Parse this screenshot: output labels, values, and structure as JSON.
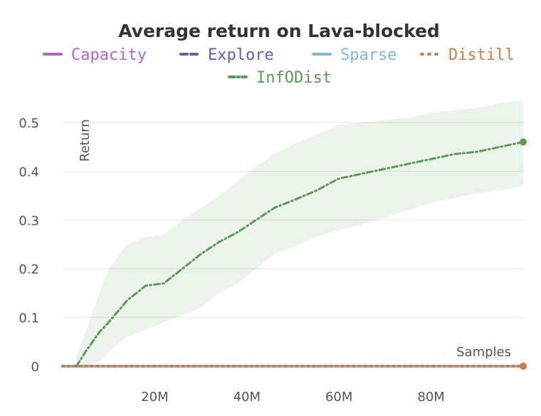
{
  "chart_data": {
    "type": "line",
    "title": "Average return on Lava-blocked",
    "xlabel": "Samples",
    "ylabel": "Return",
    "xlim": [
      0,
      100000000
    ],
    "ylim": [
      0,
      0.5
    ],
    "x_ticks": [
      20000000,
      40000000,
      60000000,
      80000000
    ],
    "x_tick_labels": [
      "20M",
      "40M",
      "60M",
      "80M"
    ],
    "y_ticks": [
      0,
      0.1,
      0.2,
      0.3,
      0.4,
      0.5
    ],
    "y_tick_labels": [
      "0",
      "0.1",
      "0.2",
      "0.3",
      "0.4",
      "0.5"
    ],
    "grid": "horizontal",
    "legend_position": "top",
    "series": [
      {
        "name": "Capacity",
        "color": "#b565c2",
        "style": "solid",
        "x": [
          0,
          100000000
        ],
        "y": [
          0,
          0
        ]
      },
      {
        "name": "Explore",
        "color": "#6e55b8",
        "style": "dashed",
        "x": [
          0,
          100000000
        ],
        "y": [
          0,
          0
        ]
      },
      {
        "name": "Sparse",
        "color": "#7fb9d9",
        "style": "solid",
        "x": [
          0,
          100000000
        ],
        "y": [
          0,
          0
        ]
      },
      {
        "name": "Distill",
        "color": "#cf7e4b",
        "style": "dotted",
        "x": [
          0,
          100000000
        ],
        "y": [
          0,
          0
        ]
      },
      {
        "name": "InfODist",
        "color": "#5c9a5a",
        "style": "dashdot",
        "x": [
          3000000,
          5000000,
          8000000,
          10000000,
          14000000,
          18000000,
          22000000,
          26000000,
          30000000,
          34000000,
          38000000,
          42000000,
          46000000,
          50000000,
          55000000,
          60000000,
          65000000,
          70000000,
          75000000,
          80000000,
          85000000,
          90000000,
          95000000,
          100000000
        ],
        "y": [
          0,
          0.03,
          0.07,
          0.09,
          0.135,
          0.165,
          0.17,
          0.2,
          0.23,
          0.255,
          0.275,
          0.3,
          0.325,
          0.34,
          0.36,
          0.385,
          0.395,
          0.405,
          0.415,
          0.425,
          0.435,
          0.44,
          0.45,
          0.46
        ],
        "band_upper": [
          0.02,
          0.07,
          0.15,
          0.2,
          0.25,
          0.265,
          0.27,
          0.3,
          0.325,
          0.35,
          0.38,
          0.41,
          0.435,
          0.455,
          0.475,
          0.495,
          0.5,
          0.505,
          0.51,
          0.52,
          0.525,
          0.53,
          0.54,
          0.545
        ],
        "band_lower": [
          0,
          0,
          0.01,
          0.03,
          0.06,
          0.075,
          0.09,
          0.105,
          0.12,
          0.15,
          0.17,
          0.2,
          0.23,
          0.245,
          0.265,
          0.28,
          0.29,
          0.305,
          0.32,
          0.335,
          0.345,
          0.355,
          0.36,
          0.37
        ]
      }
    ]
  }
}
